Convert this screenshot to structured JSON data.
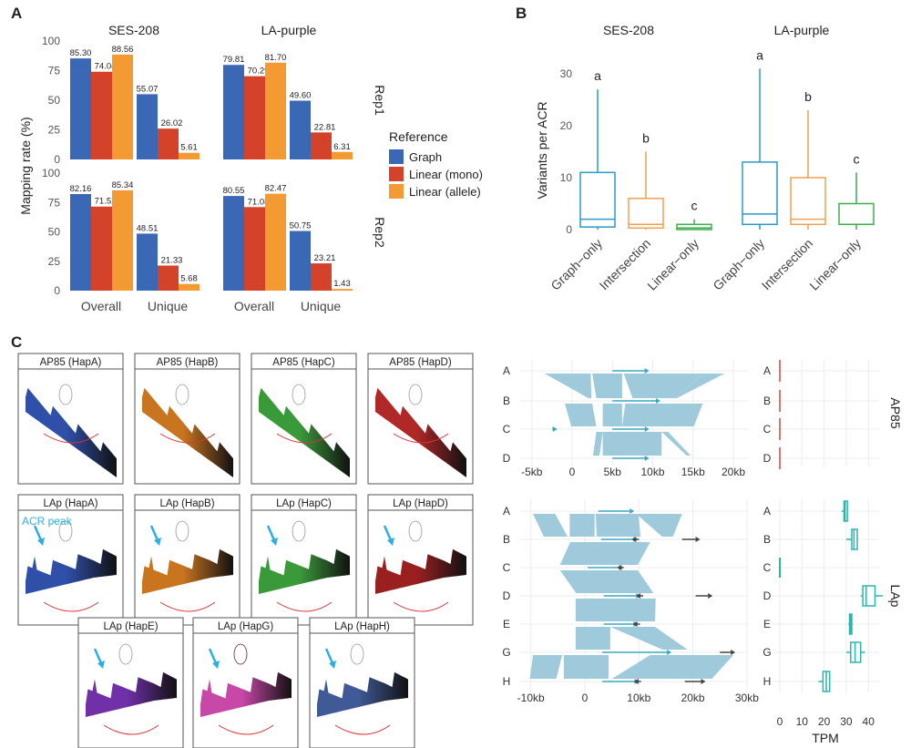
{
  "panel_labels": {
    "a": "A",
    "b": "B",
    "c": "C"
  },
  "colors": {
    "graph": "#3b68b4",
    "linear_mono": "#d4422a",
    "linear_allele": "#f49a32",
    "boxplot": [
      "#2a9bc9",
      "#f0a050",
      "#3fae4f"
    ],
    "synteny": "#9ecadb",
    "tpm_ap85": "#d9776a",
    "tpm_lap": "#2ab5ae",
    "arrow": "#2ab0e0"
  },
  "chart_data": [
    {
      "type": "bar",
      "panel": "A",
      "ylabel": "Mapping rate (%)",
      "ylim": [
        0,
        100
      ],
      "yticks": [
        "0",
        "25",
        "50",
        "75",
        "100"
      ],
      "columns": [
        "SES-208",
        "LA-purple"
      ],
      "rows": [
        "Rep1",
        "Rep2"
      ],
      "categories": [
        "Overall",
        "Unique"
      ],
      "legend": {
        "title": "Reference",
        "entries": [
          "Graph",
          "Linear (mono)",
          "Linear (allele)"
        ],
        "placement": "right"
      },
      "facets": [
        {
          "column": 0,
          "row": 0,
          "series": [
            [
              85.3,
              55.07
            ],
            [
              74.04,
              26.02
            ],
            [
              88.56,
              5.61
            ]
          ],
          "labels": [
            [
              "85.30",
              "55.07"
            ],
            [
              "74.04",
              "26.02"
            ],
            [
              "88.56",
              "5.61"
            ]
          ]
        },
        {
          "column": 1,
          "row": 0,
          "series": [
            [
              79.81,
              49.6
            ],
            [
              70.29,
              22.81
            ],
            [
              81.7,
              6.31
            ]
          ],
          "labels": [
            [
              "79.81",
              "49.60"
            ],
            [
              "70.29",
              "22.81"
            ],
            [
              "81.70",
              "6.31"
            ]
          ]
        },
        {
          "column": 0,
          "row": 1,
          "series": [
            [
              82.16,
              48.51
            ],
            [
              71.52,
              21.33
            ],
            [
              85.34,
              5.68
            ]
          ],
          "labels": [
            [
              "82.16",
              "48.51"
            ],
            [
              "71.52",
              "21.33"
            ],
            [
              "85.34",
              "5.68"
            ]
          ]
        },
        {
          "column": 1,
          "row": 1,
          "series": [
            [
              80.55,
              50.75
            ],
            [
              71.08,
              23.21
            ],
            [
              82.47,
              1.43
            ]
          ],
          "labels": [
            [
              "80.55",
              "50.75"
            ],
            [
              "71.08",
              "23.21"
            ],
            [
              "82.47",
              "1.43"
            ]
          ]
        }
      ]
    },
    {
      "type": "boxplot",
      "panel": "B",
      "ylabel": "Variants per ACR",
      "ylim": [
        0,
        33
      ],
      "yticks": [
        "0",
        "10",
        "20",
        "30"
      ],
      "categories": [
        "Graph−only",
        "Intersection",
        "Linear−only"
      ],
      "groups": [
        {
          "title": "SES-208",
          "boxes": [
            [
              0,
              0.5,
              2,
              11,
              27
            ],
            [
              0,
              0.3,
              1,
              6,
              15
            ],
            [
              0,
              0,
              0.3,
              1,
              2
            ]
          ],
          "letters": [
            "a",
            "b",
            "c"
          ]
        },
        {
          "title": "LA-purple",
          "boxes": [
            [
              0,
              1,
              3,
              13,
              31
            ],
            [
              0,
              1,
              2,
              10,
              23
            ],
            [
              0,
              1,
              1,
              5,
              11
            ]
          ],
          "letters": [
            "a",
            "b",
            "c"
          ]
        }
      ]
    },
    {
      "type": "synteny",
      "panel": "C",
      "facets": [
        {
          "name": "AP85",
          "haplotypes": [
            "A",
            "B",
            "C",
            "D"
          ],
          "xlim": [
            -6,
            21
          ],
          "xticks": [
            -5,
            0,
            5,
            10,
            15,
            20
          ],
          "xtick_labels": [
            "-5kb",
            "0",
            "5kb",
            "10kb",
            "15kb",
            "20kb"
          ],
          "links": [
            [
              [
                -3.4,
                2.3,
                2.0,
                2.4
              ],
              [
                2.5,
                6.2,
                3.0,
                6.2
              ],
              [
                6.4,
                16.4,
                7.5,
                12.6
              ],
              [
                16.4,
                18.9,
                12.6,
                13.0
              ]
            ],
            [
              [
                -0.9,
                2.5,
                -0.1,
                3.0
              ],
              [
                3.8,
                6.2,
                3.8,
                6.2
              ],
              [
                6.6,
                16.2,
                6.2,
                15.1
              ]
            ],
            [
              [
                3.0,
                3.8,
                2.6,
                3.4
              ],
              [
                3.8,
                11.1,
                3.8,
                11.1
              ],
              [
                11.1,
                11.9,
                14.2,
                14.7
              ]
            ]
          ],
          "genes": [
            [
              [
                5,
                9
              ]
            ],
            [
              [
                5,
                10.4
              ]
            ],
            [
              [
                -2.5,
                -2.4
              ],
              [
                5,
                9
              ]
            ],
            [
              [
                5,
                9
              ]
            ]
          ],
          "other_genes": [
            [],
            [],
            [],
            []
          ],
          "tpm": [
            [
              0,
              0,
              0,
              0,
              0
            ],
            [
              0,
              0,
              0,
              0,
              0
            ],
            [
              0,
              0,
              0,
              0,
              0
            ],
            [
              0,
              0,
              0,
              0,
              0
            ]
          ]
        },
        {
          "name": "LAp",
          "haplotypes": [
            "A",
            "B",
            "C",
            "D",
            "E",
            "G",
            "H"
          ],
          "xlim": [
            -11,
            30
          ],
          "xticks": [
            -10,
            0,
            10,
            20,
            30
          ],
          "xtick_labels": [
            "-10kb",
            "0",
            "10kb",
            "20kb",
            "30kb"
          ],
          "links": [
            [
              [
                -9.6,
                -5.5,
                -7.6,
                -3.2
              ],
              [
                -2.8,
                1.8,
                -2.8,
                1.8
              ],
              [
                2.0,
                9.9,
                2.2,
                10.3
              ],
              [
                9.5,
                18.0,
                14.3,
                16.3
              ]
            ],
            [
              [
                -2.7,
                12.1,
                -4.6,
                9.8
              ]
            ],
            [
              [
                -4.6,
                9.8,
                -1.6,
                12.7
              ]
            ],
            [
              [
                -1.7,
                13.1,
                -1.7,
                13.0
              ]
            ],
            [
              [
                -1.7,
                4.7,
                -1.7,
                4.7
              ],
              [
                4.7,
                13.0,
                14.4,
                19.0
              ]
            ],
            [
              [
                -9.6,
                -4.2,
                -10.2,
                -5.3
              ],
              [
                -3.9,
                4.4,
                -3.9,
                4.4
              ],
              [
                12.1,
                27.5,
                5.0,
                23.5
              ]
            ]
          ],
          "genes": [
            [
              [
                2.5,
                8.3
              ]
            ],
            [
              [
                3,
                9
              ]
            ],
            [
              [
                0.5,
                6.3
              ]
            ],
            [
              [
                3.5,
                9.5
              ]
            ],
            [
              [
                3.5,
                9.0
              ]
            ],
            [
              [
                3.2,
                15.2
              ]
            ],
            [
              [
                3.2,
                9.2
              ]
            ]
          ],
          "other_genes": [
            [],
            [
              [
                10,
                9.5
              ],
              [
                18,
                20.5
              ]
            ],
            [
              [
                7.2,
                6.8
              ]
            ],
            [
              [
                10.8,
                10.3
              ],
              [
                20.5,
                22.8
              ]
            ],
            [
              [
                10.2,
                9.7
              ]
            ],
            [
              [
                25,
                27
              ]
            ],
            [
              [
                10.4,
                9.9
              ],
              [
                18.5,
                21.5
              ]
            ]
          ],
          "tpm": [
            [
              28,
              29,
              29.5,
              30.5,
              30.5
            ],
            [
              30,
              32.5,
              33.5,
              35,
              35
            ],
            [
              0,
              0,
              0,
              0,
              0
            ],
            [
              36.5,
              37.5,
              39,
              43,
              46.5
            ],
            [
              31,
              31.5,
              32,
              32.5,
              33
            ],
            [
              30,
              32,
              34,
              36.5,
              38.5
            ],
            [
              17.5,
              19.5,
              21,
              22.5,
              22.5
            ]
          ]
        }
      ],
      "tpm_axis": {
        "xlabel": "TPM",
        "xlim": [
          0,
          48
        ],
        "xticks": [
          "0",
          "10",
          "20",
          "30",
          "40"
        ]
      }
    }
  ],
  "thumbnails": [
    {
      "title": "AP85 (HapA)",
      "color": "#2f4fa8",
      "arrow": false
    },
    {
      "title": "AP85 (HapB)",
      "color": "#c9741f",
      "arrow": false
    },
    {
      "title": "AP85 (HapC)",
      "color": "#3a9a3a",
      "arrow": false
    },
    {
      "title": "AP85 (HapD)",
      "color": "#b02828",
      "arrow": false
    },
    {
      "title": "LAp (HapA)",
      "color": "#2f4fa8",
      "arrow": true
    },
    {
      "title": "LAp (HapB)",
      "color": "#c9741f",
      "arrow": true
    },
    {
      "title": "LAp (HapC)",
      "color": "#3a9a3a",
      "arrow": true
    },
    {
      "title": "LAp (HapD)",
      "color": "#9a2020",
      "arrow": true
    },
    {
      "title": "LAp (HapE)",
      "color": "#7030a8",
      "arrow": true
    },
    {
      "title": "LAp (HapG)",
      "color": "#c848a8",
      "arrow": true
    },
    {
      "title": "LAp (HapH)",
      "color": "#405a98",
      "arrow": true
    }
  ],
  "annotation": "ACR peak"
}
